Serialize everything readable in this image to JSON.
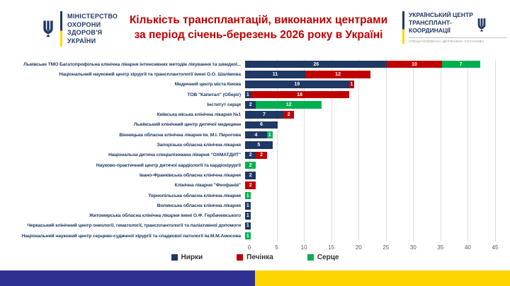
{
  "header": {
    "ministry_logo": {
      "lines": [
        "МІНІСТЕРСТВО",
        "ОХОРОНИ",
        "ЗДОРОВ'Я",
        "УКРАЇНИ"
      ]
    },
    "title_line1": "Кількість трансплантацій,  виконаних центрами",
    "title_line2": "за період січень-березень 2026 року в Україні",
    "title_color": "#C00000",
    "uctc_logo": {
      "lines": [
        "УКРАЇНСЬКИЙ ЦЕНТР",
        "ТРАНСПЛАНТ-",
        "КООРДИНАЦІЇ"
      ],
      "subtitle": "СПЕЦІАЛІЗОВАНА ДЕРЖАВНА УСТАНОВА"
    }
  },
  "chart_data": {
    "type": "bar",
    "orientation": "horizontal",
    "stacked": true,
    "title": "Кількість трансплантацій, виконаних центрами за період січень-березень 2026 року в Україні",
    "categories": [
      "Львівське ТМО Багатопрофільна клінічна лікарня інтенсивних методів лікування та швидкої...",
      "Національний науковий центр хірургії та трансплантології імені О.О. Шалімова",
      "Медичний центр міста Києва",
      "ТОВ \"Капитал\" (Оберіг)",
      "Інститут серця",
      "Київська міська клінічна лікарня №1",
      "Львівський клінічний центр дитячої медицини",
      "Вінницька обласна клінічна лікарня ім. М.І. Пирогова",
      "Запорізька обласна клінічна лікарня",
      "Національна дитяча спеціалізована лікарня \"ОХМАТДИТ\"",
      "Науково-практичний центр дитячої кардіології та кардіохірургії",
      "Івано-Франківська обласна клінічна лікарня",
      "Клінічна лікарня \"Феофанія\"",
      "Тернопільська обласна клінічна лікарня",
      "Волинська обласна клінічна лікарня",
      "Житомирська обласна клінічна лікарня імені О.Ф. Гербачевського",
      "Черкаський клінічний центр онкології, гематології, трансплантології та паліативної допомоги",
      "Національний науковий центр серцево-судинної хірургії та спадкової патології ім.М.М.Амосова"
    ],
    "series": [
      {
        "name": "Нирки",
        "color": "#1F3864",
        "values": [
          26,
          11,
          19,
          1,
          2,
          7,
          6,
          4,
          5,
          2,
          0,
          2,
          0,
          0,
          1,
          1,
          1,
          0
        ]
      },
      {
        "name": "Печінка",
        "color": "#C00000",
        "values": [
          10,
          12,
          1,
          18,
          0,
          2,
          0,
          0,
          0,
          2,
          0,
          0,
          2,
          0,
          0,
          0,
          0,
          0
        ]
      },
      {
        "name": "Серце",
        "color": "#00B050",
        "values": [
          7,
          0,
          0,
          0,
          12,
          0,
          0,
          1,
          0,
          0,
          2,
          0,
          0,
          1,
          0,
          0,
          0,
          1
        ]
      }
    ],
    "xlim": [
      0,
      45
    ],
    "xticks": [
      0,
      5,
      10,
      15,
      20,
      25,
      30,
      35,
      40,
      45
    ],
    "grid": true,
    "legend_position": "bottom"
  },
  "footer": {
    "left_color": "#2E3192",
    "right_color": "#FFD500"
  }
}
